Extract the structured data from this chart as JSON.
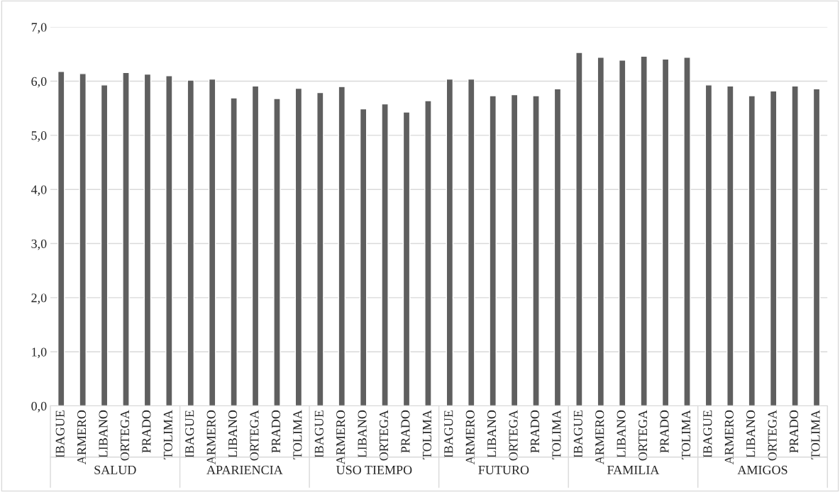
{
  "chart_data": {
    "type": "bar",
    "categories": [
      "IBAGUE",
      "ARMERO",
      "LIBANO",
      "ORTEGA",
      "PRADO",
      "TOLIMA",
      "IBAGUE",
      "ARMERO",
      "LIBANO",
      "ORTEGA",
      "PRADO",
      "TOLIMA",
      "IBAGUE",
      "ARMERO",
      "LIBANO",
      "ORTEGA",
      "PRADO",
      "TOLIMA",
      "IBAGUE",
      "ARMERO",
      "LIBANO",
      "ORTEGA",
      "PRADO",
      "TOLIMA",
      "IBAGUE",
      "ARMERO",
      "LIBANO",
      "ORTEGA",
      "PRADO",
      "TOLIMA",
      "IBAGUE",
      "ARMERO",
      "LIBANO",
      "ORTEGA",
      "PRADO",
      "TOLIMA"
    ],
    "values": [
      6.18,
      6.14,
      5.93,
      6.16,
      6.13,
      6.1,
      6.02,
      6.04,
      5.69,
      5.91,
      5.68,
      5.87,
      5.79,
      5.9,
      5.49,
      5.58,
      5.43,
      5.64,
      6.04,
      6.04,
      5.73,
      5.75,
      5.73,
      5.86,
      6.53,
      6.44,
      6.39,
      6.46,
      6.41,
      6.44,
      5.93,
      5.91,
      5.73,
      5.82,
      5.91,
      5.86
    ],
    "color": "#5f5f5f",
    "annotations": [
      "SALUD",
      "APARIENCIA",
      "USO TIEMPO",
      "FUTURO",
      "FAMILIA",
      "AMIGOS"
    ],
    "ylim": [
      0,
      7
    ],
    "yticks": [
      {
        "value": 0,
        "label": "0,0"
      },
      {
        "value": 1,
        "label": "1,0"
      },
      {
        "value": 2,
        "label": "2,0"
      },
      {
        "value": 3,
        "label": "3,0"
      },
      {
        "value": 4,
        "label": "4,0"
      },
      {
        "value": 5,
        "label": "5,0"
      },
      {
        "value": 6,
        "label": "6,0"
      },
      {
        "value": 7,
        "label": "7,0"
      }
    ],
    "grid": "y"
  }
}
